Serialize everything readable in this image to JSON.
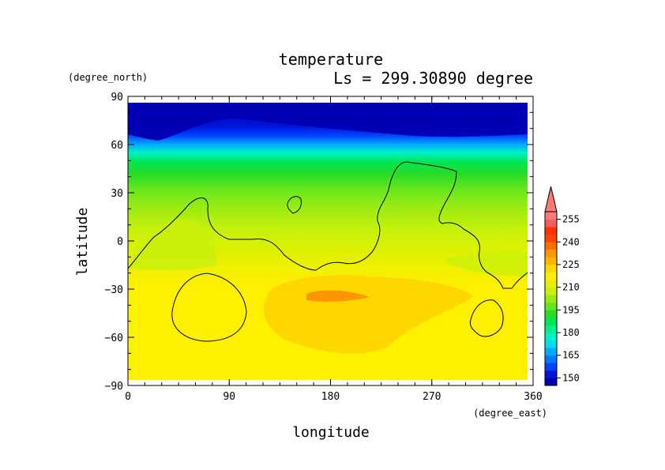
{
  "chart_data": {
    "type": "heatmap",
    "title": "temperature",
    "subtitle": "Ls = 299.30890 degree",
    "xlabel": "longitude",
    "ylabel": "latitude",
    "x_units": "(degree_east)",
    "y_units": "(degree_north)",
    "xlim": [
      0,
      360
    ],
    "ylim": [
      -90,
      90
    ],
    "xticks": [
      "0",
      "90",
      "180",
      "270",
      "360"
    ],
    "yticks": [
      "90",
      "60",
      "30",
      "0",
      "−30",
      "−60",
      "−90"
    ],
    "colorbar": {
      "levels": [
        145,
        150,
        155,
        160,
        165,
        170,
        175,
        180,
        185,
        190,
        195,
        200,
        205,
        210,
        215,
        220,
        225,
        230,
        235,
        240,
        245,
        250,
        255,
        260
      ],
      "colors": [
        "#0000b4",
        "#0014dc",
        "#0046ff",
        "#0078ff",
        "#00aaff",
        "#00dcf0",
        "#00f0c8",
        "#00f08c",
        "#00e650",
        "#28dc28",
        "#64e61e",
        "#96eb14",
        "#c8f00a",
        "#e6f000",
        "#fff000",
        "#ffd700",
        "#ffb400",
        "#ff9600",
        "#ff6e00",
        "#ff4600",
        "#ff3200",
        "#ff5a5a",
        "#ff7878"
      ],
      "tick_labels": [
        "150",
        "165",
        "180",
        "195",
        "210",
        "225",
        "240",
        "255"
      ],
      "extend": "max"
    },
    "coastline_contour": true
  }
}
